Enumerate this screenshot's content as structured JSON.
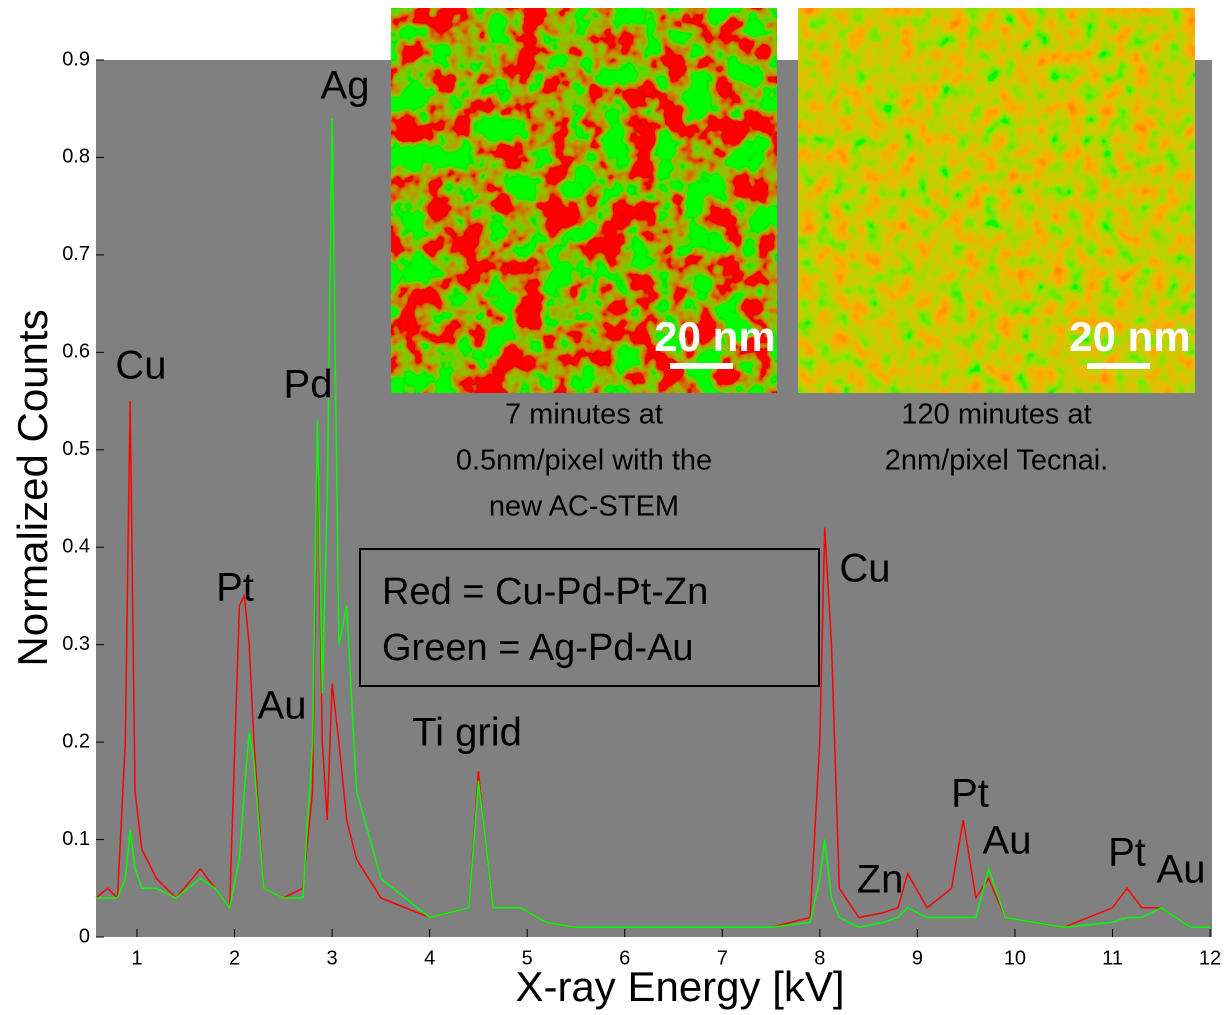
{
  "chart_data": {
    "type": "line",
    "xlabel": "X-ray Energy [kV]",
    "ylabel": "Normalized Counts",
    "xlim": [
      0.58,
      12.02
    ],
    "ylim": [
      0,
      0.9
    ],
    "xticks": [
      1,
      2,
      3,
      4,
      5,
      6,
      7,
      8,
      9,
      10,
      11,
      12
    ],
    "yticks": [
      0,
      0.1,
      0.2,
      0.3,
      0.4,
      0.5,
      0.6,
      0.7,
      0.8,
      0.9
    ],
    "background": "#808080",
    "x": [
      0.58,
      0.7,
      0.8,
      0.88,
      0.93,
      0.98,
      1.05,
      1.2,
      1.4,
      1.65,
      1.8,
      1.95,
      2.05,
      2.1,
      2.15,
      2.2,
      2.3,
      2.5,
      2.7,
      2.8,
      2.85,
      2.9,
      2.95,
      3.0,
      3.07,
      3.15,
      3.25,
      3.5,
      4.0,
      4.4,
      4.5,
      4.55,
      4.65,
      4.93,
      5.2,
      5.5,
      6.0,
      6.5,
      7.0,
      7.5,
      7.9,
      8.0,
      8.05,
      8.12,
      8.2,
      8.4,
      8.65,
      8.8,
      8.9,
      9.1,
      9.35,
      9.47,
      9.6,
      9.73,
      9.9,
      10.5,
      11.0,
      11.15,
      11.3,
      11.5,
      11.8,
      12.0
    ],
    "series": [
      {
        "name": "Red = Cu-Pd-Pt-Zn",
        "color": "#ff0000",
        "values": [
          0.04,
          0.05,
          0.04,
          0.2,
          0.55,
          0.15,
          0.09,
          0.06,
          0.04,
          0.07,
          0.05,
          0.03,
          0.34,
          0.35,
          0.3,
          0.2,
          0.05,
          0.04,
          0.05,
          0.15,
          0.52,
          0.2,
          0.12,
          0.26,
          0.2,
          0.12,
          0.08,
          0.04,
          0.02,
          0.03,
          0.17,
          0.12,
          0.03,
          0.03,
          0.015,
          0.01,
          0.01,
          0.01,
          0.01,
          0.01,
          0.02,
          0.2,
          0.42,
          0.3,
          0.05,
          0.02,
          0.025,
          0.03,
          0.065,
          0.03,
          0.05,
          0.12,
          0.04,
          0.06,
          0.02,
          0.01,
          0.03,
          0.05,
          0.03,
          0.03,
          0.01,
          0.01
        ]
      },
      {
        "name": "Green = Ag-Pd-Au",
        "color": "#00ff00",
        "values": [
          0.04,
          0.04,
          0.04,
          0.06,
          0.11,
          0.07,
          0.05,
          0.05,
          0.04,
          0.06,
          0.05,
          0.03,
          0.08,
          0.15,
          0.21,
          0.18,
          0.05,
          0.04,
          0.04,
          0.2,
          0.53,
          0.25,
          0.45,
          0.84,
          0.3,
          0.34,
          0.15,
          0.06,
          0.02,
          0.03,
          0.16,
          0.12,
          0.03,
          0.03,
          0.015,
          0.01,
          0.01,
          0.01,
          0.01,
          0.01,
          0.015,
          0.06,
          0.1,
          0.04,
          0.02,
          0.01,
          0.015,
          0.02,
          0.03,
          0.02,
          0.02,
          0.02,
          0.02,
          0.07,
          0.02,
          0.01,
          0.015,
          0.02,
          0.02,
          0.03,
          0.01,
          0.01
        ]
      }
    ],
    "annotations": [
      "Cu",
      "Ag",
      "Pd",
      "Pt",
      "Au",
      "Ti grid",
      "Cu",
      "Zn",
      "Pt",
      "Au",
      "Pt",
      "Au"
    ],
    "insets": [
      {
        "scale_bar": "20 nm",
        "caption": [
          "7 minutes at",
          "0.5nm/pixel with the",
          "new AC-STEM"
        ]
      },
      {
        "scale_bar": "20 nm",
        "caption": [
          "120 minutes at",
          "2nm/pixel Tecnai."
        ]
      }
    ]
  }
}
